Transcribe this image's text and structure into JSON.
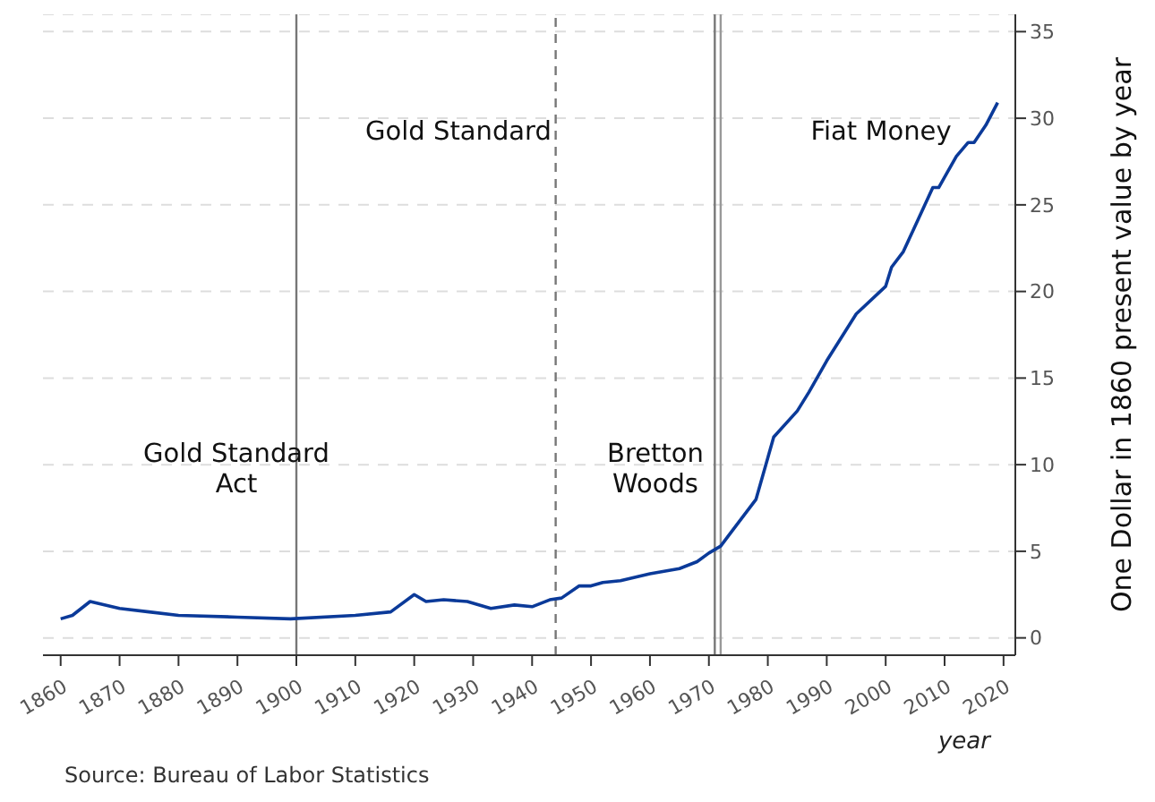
{
  "chart_data": {
    "type": "line",
    "xlabel": "year",
    "ylabel": "One Dollar in 1860 present value by year",
    "x": [
      1860,
      1862,
      1865,
      1870,
      1875,
      1880,
      1890,
      1899,
      1910,
      1916,
      1920,
      1922,
      1925,
      1929,
      1933,
      1937,
      1940,
      1943,
      1945,
      1948,
      1950,
      1952,
      1955,
      1960,
      1965,
      1968,
      1970,
      1972,
      1974,
      1978,
      1980,
      1981,
      1985,
      1987,
      1990,
      1995,
      2000,
      2001,
      2003,
      2008,
      2009,
      2010,
      2012,
      2014,
      2015,
      2017,
      2019
    ],
    "series": [
      {
        "color": "#0b3a99",
        "values": [
          1.1,
          1.3,
          2.1,
          1.7,
          1.5,
          1.3,
          1.2,
          1.1,
          1.3,
          1.5,
          2.5,
          2.1,
          2.2,
          2.1,
          1.7,
          1.9,
          1.8,
          2.2,
          2.3,
          3.0,
          3.0,
          3.2,
          3.3,
          3.7,
          4.0,
          4.4,
          4.9,
          5.3,
          6.2,
          8.0,
          10.4,
          11.6,
          13.1,
          14.2,
          16.0,
          18.7,
          20.3,
          21.4,
          22.3,
          26.0,
          26.0,
          26.6,
          27.8,
          28.6,
          28.6,
          29.6,
          30.9
        ]
      }
    ],
    "xlim": [
      1857,
      2022
    ],
    "xticks": [
      1860,
      1870,
      1880,
      1890,
      1900,
      1910,
      1920,
      1930,
      1940,
      1950,
      1960,
      1970,
      1980,
      1990,
      2000,
      2010,
      2020
    ],
    "ylim": [
      -1,
      36
    ],
    "yticks": [
      0,
      5,
      10,
      15,
      20,
      25,
      30,
      35
    ],
    "grid": "y",
    "marker": "none",
    "line_style": "solid",
    "ref_lines": [
      {
        "axis": "x",
        "value": 1900,
        "color": "#777777",
        "line_style": "solid"
      },
      {
        "axis": "x",
        "value": 1944,
        "color": "#777777",
        "line_style": "dashed"
      },
      {
        "axis": "x",
        "value": 1971,
        "color": "#777777",
        "line_style": "solid"
      },
      {
        "axis": "x",
        "value": 1972,
        "color": "#999999",
        "line_style": "solid"
      }
    ],
    "annotations": [
      "Gold Standard\nAct",
      "Gold Standard",
      "Bretton\nWoods",
      "Fiat Money",
      "Source: Bureau of Labor Statistics"
    ]
  }
}
